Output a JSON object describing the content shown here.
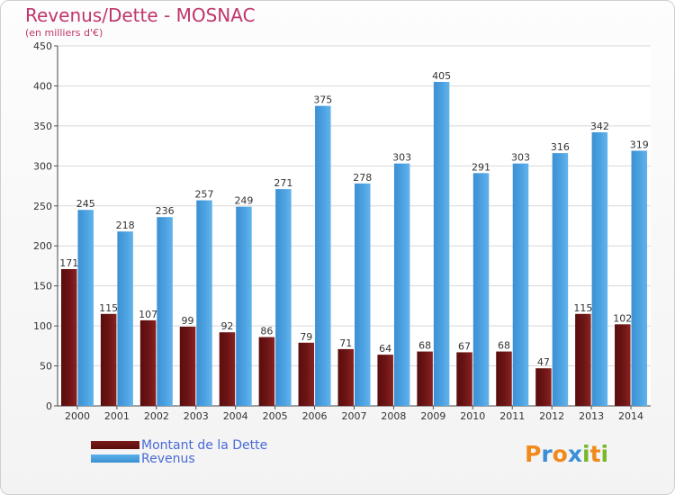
{
  "chart_data": {
    "type": "bar",
    "title": "Revenus/Dette - MOSNAC",
    "subtitle": "(en milliers d'€)",
    "categories": [
      "2000",
      "2001",
      "2002",
      "2003",
      "2004",
      "2005",
      "2006",
      "2007",
      "2008",
      "2009",
      "2010",
      "2011",
      "2012",
      "2013",
      "2014"
    ],
    "series": [
      {
        "name": "Montant de la Dette",
        "values": [
          171,
          115,
          107,
          99,
          92,
          86,
          79,
          71,
          64,
          68,
          67,
          68,
          47,
          115,
          102
        ]
      },
      {
        "name": "Revenus",
        "values": [
          245,
          218,
          236,
          257,
          249,
          271,
          375,
          278,
          303,
          405,
          291,
          303,
          316,
          342,
          319
        ]
      }
    ],
    "ylim": [
      0,
      450
    ],
    "yticks": [
      0,
      50,
      100,
      150,
      200,
      250,
      300,
      350,
      400,
      450
    ],
    "grid": true,
    "legend": "bottom-left"
  },
  "colors": {
    "dette": "#6b1414",
    "revenus": "#4aa0e0",
    "title": "#c0356b",
    "legend_text": "#4a6ad6"
  },
  "brand": {
    "text": "Proxiti",
    "letters": [
      "P",
      "r",
      "o",
      "x",
      "i",
      "t",
      "i"
    ]
  }
}
